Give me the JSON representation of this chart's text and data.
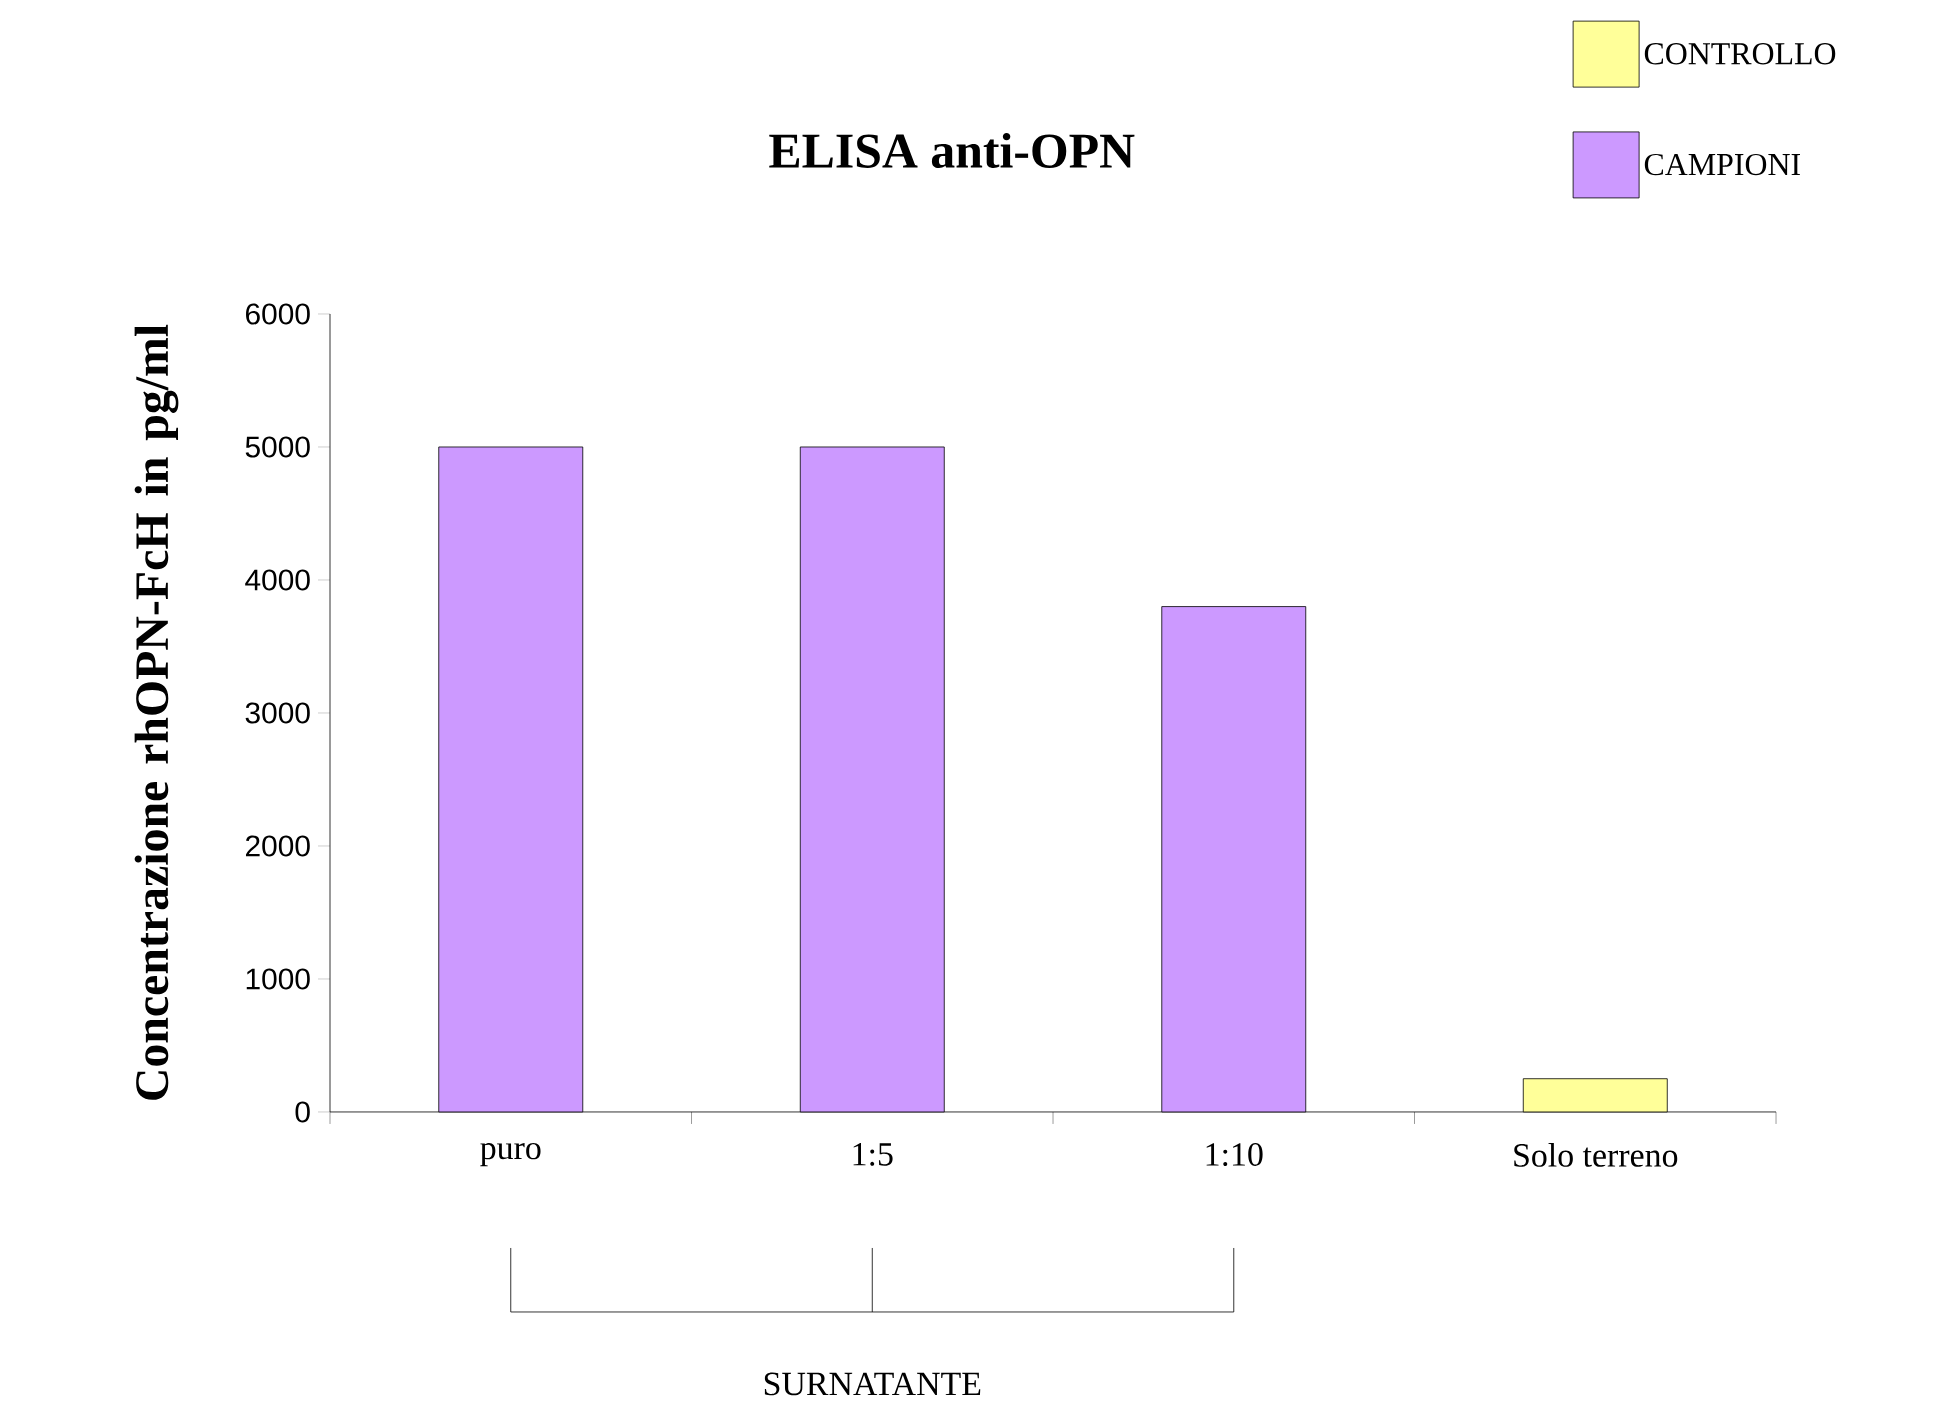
{
  "chart_data": {
    "type": "bar",
    "title": "ELISA anti-OPN",
    "ylabel": "Concentrazione rhOPN-FcH in pg/ml",
    "categories": [
      "puro",
      "1:5",
      "1:10",
      "Solo terreno"
    ],
    "series": [
      {
        "name": "CONTROLLO",
        "color": "#ffff99",
        "values": [
          null,
          null,
          null,
          250
        ]
      },
      {
        "name": "CAMPIONI",
        "color": "#cc99ff",
        "values": [
          5000,
          5000,
          3800,
          null
        ]
      }
    ],
    "ylim": [
      0,
      6000
    ],
    "yticks": [
      0,
      1000,
      2000,
      3000,
      4000,
      5000,
      6000
    ],
    "legend": "top right",
    "grid": false,
    "annotations": [
      "SURNATANTE"
    ]
  }
}
